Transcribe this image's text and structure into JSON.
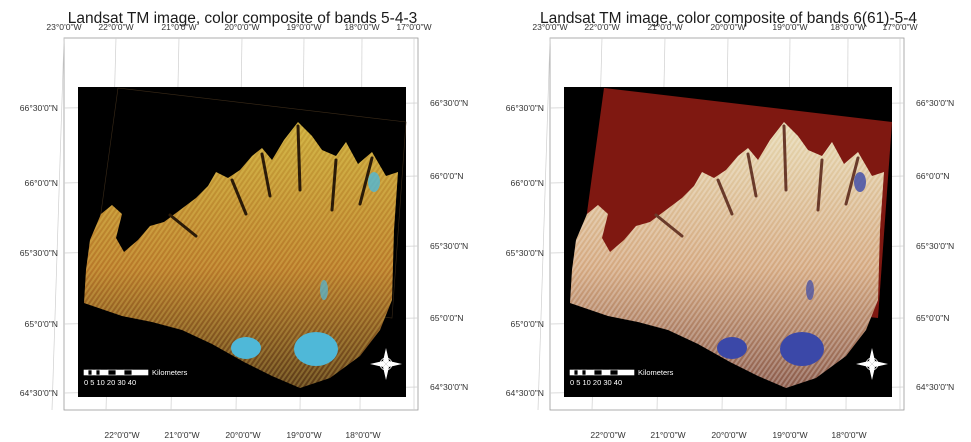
{
  "panels": [
    {
      "id": "left",
      "title": "Landsat TM image, color composite of bands 5-4-3",
      "top_lon_labels": [
        "23°0'0\"W",
        "22°0'0\"W",
        "21°0'0\"W",
        "20°0'0\"W",
        "19°0'0\"W",
        "18°0'0\"W",
        "17°0'0\"W"
      ],
      "bottom_lon_labels": [
        "22°0'0\"W",
        "21°0'0\"W",
        "20°0'0\"W",
        "19°0'0\"W",
        "18°0'0\"W"
      ],
      "left_lat_labels": [
        "66°30'0\"N",
        "66°0'0\"N",
        "65°30'0\"N",
        "65°0'0\"N",
        "64°30'0\"N"
      ],
      "right_lat_labels": [
        "66°30'0\"N",
        "66°0'0\"N",
        "65°30'0\"N",
        "65°0'0\"N",
        "64°30'0\"N"
      ],
      "scale": {
        "unit": "Kilometers",
        "ticks": "0 5 10  20  30  40"
      },
      "palette": {
        "land_bright": "#c7a63a",
        "land_dark": "#5a3a18",
        "land_mid": "#b8792a",
        "ice": "#4fb8d8",
        "bg": "#000000",
        "water": "#000000"
      }
    },
    {
      "id": "right",
      "title": "Landsat TM image, color composite of bands 6(61)-5-4",
      "top_lon_labels": [
        "23°0'0\"W",
        "22°0'0\"W",
        "21°0'0\"W",
        "20°0'0\"W",
        "19°0'0\"W",
        "18°0'0\"W",
        "17°0'0\"W"
      ],
      "bottom_lon_labels": [
        "22°0'0\"W",
        "21°0'0\"W",
        "20°0'0\"W",
        "19°0'0\"W",
        "18°0'0\"W"
      ],
      "left_lat_labels": [
        "66°30'0\"N",
        "66°0'0\"N",
        "65°30'0\"N",
        "65°0'0\"N",
        "64°30'0\"N"
      ],
      "right_lat_labels": [
        "66°30'0\"N",
        "66°0'0\"N",
        "65°30'0\"N",
        "65°0'0\"N",
        "64°30'0\"N"
      ],
      "scale": {
        "unit": "Kilometers",
        "ticks": "0 5 10  20  30  40"
      },
      "palette": {
        "land_bright": "#e6d8b0",
        "land_dark": "#8a5a4a",
        "land_mid": "#d4a880",
        "ice": "#3b48a8",
        "bg": "#000000",
        "water": "#8a1a12"
      }
    }
  ]
}
